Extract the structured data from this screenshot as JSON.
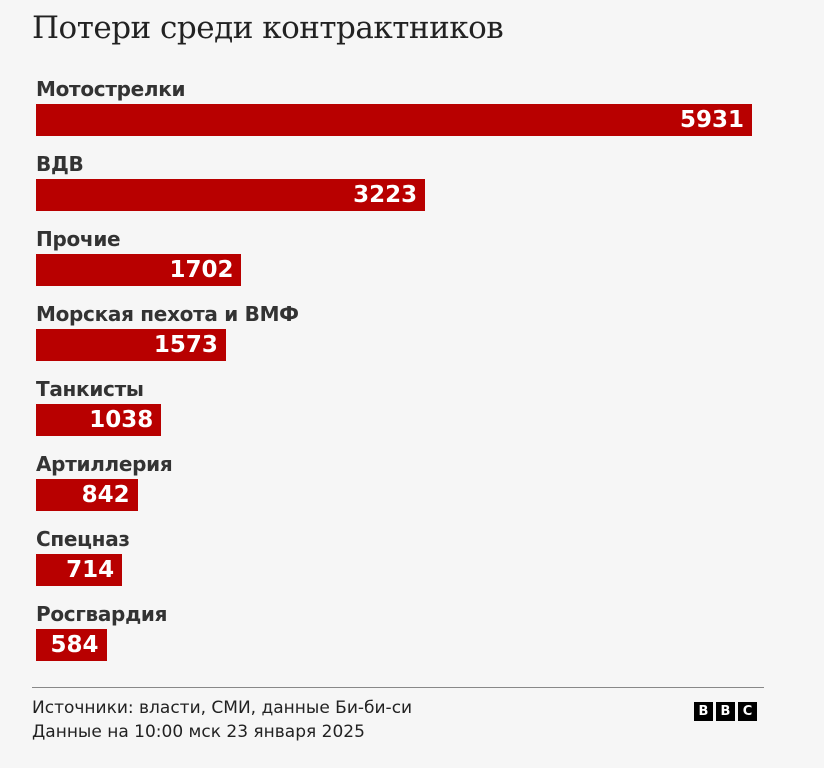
{
  "title": "Потери среди контрактников",
  "chart_data": {
    "type": "bar",
    "orientation": "horizontal",
    "title": "Потери среди контрактников",
    "categories": [
      "Мотострелки",
      "ВДВ",
      "Прочие",
      "Морская пехота и ВМФ",
      "Танкисты",
      "Артиллерия",
      "Спецназ",
      "Росгвардия"
    ],
    "values": [
      5931,
      3223,
      1702,
      1573,
      1038,
      842,
      714,
      584
    ],
    "xlim": [
      0,
      5931
    ],
    "grid": false,
    "bar_color": "#b80000"
  },
  "footer": {
    "source": "Источники: власти, СМИ, данные Би-би-си",
    "date": "Данные на 10:00 мск 23 января 2025",
    "logo": [
      "B",
      "B",
      "C"
    ]
  }
}
